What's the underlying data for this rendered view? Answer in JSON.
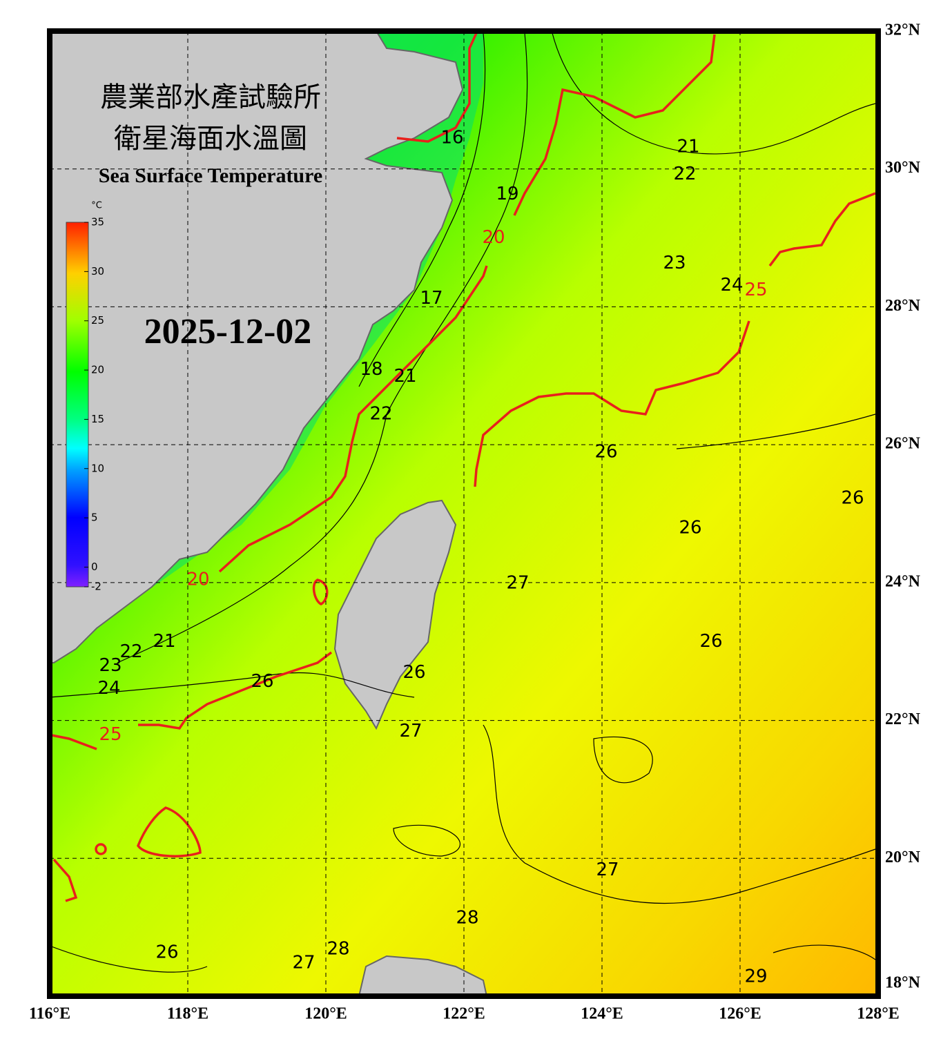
{
  "title_zh": "農業部水產試驗所",
  "subtitle_zh": "衛星海面水溫圖",
  "title_en": "Sea Surface Temperature",
  "date": "2025-12-02",
  "colorbar": {
    "unit": "°C",
    "lim": [
      -2,
      35
    ],
    "ticks": [
      35,
      30,
      25,
      20,
      15,
      10,
      5,
      0,
      -2
    ]
  },
  "map": {
    "xlim": [
      116,
      128
    ],
    "ylim": [
      18,
      32
    ],
    "grid": true,
    "major_color": "#e8201c",
    "xticks": [
      {
        "value": 116,
        "label": "116°E"
      },
      {
        "value": 118,
        "label": "118°E"
      },
      {
        "value": 120,
        "label": "120°E"
      },
      {
        "value": 122,
        "label": "122°E"
      },
      {
        "value": 124,
        "label": "124°E"
      },
      {
        "value": 126,
        "label": "126°E"
      },
      {
        "value": 128,
        "label": "128°E"
      }
    ],
    "yticks": [
      {
        "value": 18,
        "label": "18°N"
      },
      {
        "value": 20,
        "label": "20°N"
      },
      {
        "value": 22,
        "label": "22°N"
      },
      {
        "value": 24,
        "label": "24°N"
      },
      {
        "value": 26,
        "label": "26°N"
      },
      {
        "value": 28,
        "label": "28°N"
      },
      {
        "value": 30,
        "label": "30°N"
      },
      {
        "value": 32,
        "label": "32°N"
      }
    ],
    "contour_labels": [
      {
        "value": 16,
        "lon": 121.83,
        "lat": 30.45
      },
      {
        "value": 21,
        "lon": 125.25,
        "lat": 30.32
      },
      {
        "value": 22,
        "lon": 125.2,
        "lat": 29.92
      },
      {
        "value": 19,
        "lon": 122.63,
        "lat": 29.63
      },
      {
        "value": 23,
        "lon": 125.05,
        "lat": 28.63
      },
      {
        "value": 24,
        "lon": 125.88,
        "lat": 28.31
      },
      {
        "value": 17,
        "lon": 121.53,
        "lat": 28.12
      },
      {
        "value": 18,
        "lon": 120.66,
        "lat": 27.09
      },
      {
        "value": 21,
        "lon": 121.15,
        "lat": 26.99
      },
      {
        "value": 22,
        "lon": 120.8,
        "lat": 26.44
      },
      {
        "value": 26,
        "lon": 124.06,
        "lat": 25.89
      },
      {
        "value": 26,
        "lon": 127.63,
        "lat": 25.22
      },
      {
        "value": 26,
        "lon": 125.28,
        "lat": 24.79
      },
      {
        "value": 27,
        "lon": 122.78,
        "lat": 23.99
      },
      {
        "value": 26,
        "lon": 125.58,
        "lat": 23.14
      },
      {
        "value": 21,
        "lon": 117.66,
        "lat": 23.14
      },
      {
        "value": 22,
        "lon": 117.18,
        "lat": 22.99
      },
      {
        "value": 23,
        "lon": 116.88,
        "lat": 22.79
      },
      {
        "value": 24,
        "lon": 116.86,
        "lat": 22.46
      },
      {
        "value": 26,
        "lon": 119.08,
        "lat": 22.56
      },
      {
        "value": 26,
        "lon": 121.28,
        "lat": 22.69
      },
      {
        "value": 27,
        "lon": 121.23,
        "lat": 21.84
      },
      {
        "value": 27,
        "lon": 124.08,
        "lat": 19.83
      },
      {
        "value": 28,
        "lon": 122.05,
        "lat": 19.13
      },
      {
        "value": 26,
        "lon": 117.7,
        "lat": 18.63
      },
      {
        "value": 27,
        "lon": 119.68,
        "lat": 18.48
      },
      {
        "value": 28,
        "lon": 120.18,
        "lat": 18.68
      },
      {
        "value": 29,
        "lon": 126.23,
        "lat": 18.28
      }
    ],
    "major_contour_labels": [
      {
        "value": 20,
        "lon": 122.43,
        "lat": 29.0
      },
      {
        "value": 25,
        "lon": 126.23,
        "lat": 28.24
      },
      {
        "value": 20,
        "lon": 118.15,
        "lat": 24.04
      },
      {
        "value": 25,
        "lon": 116.88,
        "lat": 21.79
      }
    ]
  }
}
